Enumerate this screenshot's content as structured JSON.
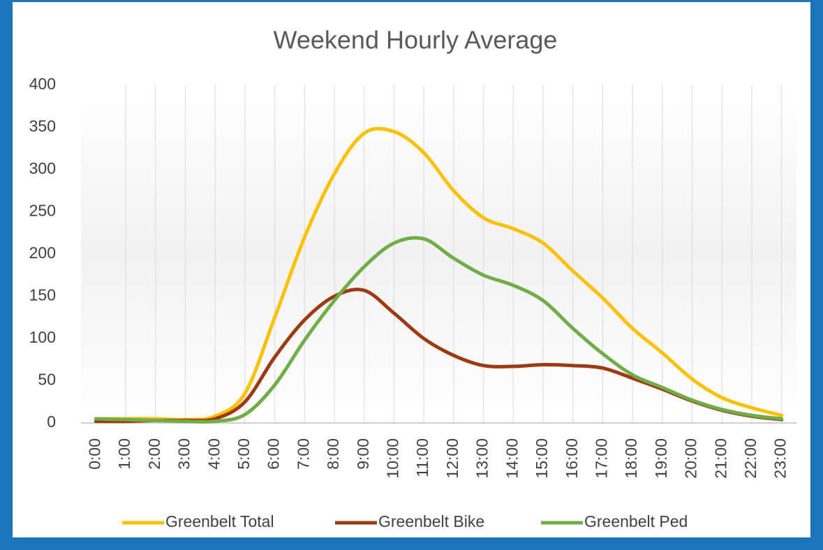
{
  "chart_data": {
    "type": "line",
    "title": "Weekend Hourly Average",
    "categories": [
      "0:00",
      "1:00",
      "2:00",
      "3:00",
      "4:00",
      "5:00",
      "6:00",
      "7:00",
      "8:00",
      "9:00",
      "10:00",
      "11:00",
      "12:00",
      "13:00",
      "14:00",
      "15:00",
      "16:00",
      "17:00",
      "18:00",
      "19:00",
      "20:00",
      "21:00",
      "22:00",
      "23:00"
    ],
    "series": [
      {
        "name": "Greenbelt Total",
        "color": "#ffc000",
        "values": [
          5,
          5,
          5,
          4,
          8,
          35,
          125,
          220,
          295,
          343,
          345,
          320,
          275,
          243,
          230,
          213,
          180,
          148,
          112,
          83,
          52,
          30,
          18,
          9
        ]
      },
      {
        "name": "Greenbelt Bike",
        "color": "#9e3a13",
        "values": [
          2,
          2,
          3,
          3,
          5,
          25,
          78,
          122,
          150,
          157,
          130,
          100,
          80,
          68,
          67,
          69,
          68,
          65,
          53,
          40,
          26,
          15,
          8,
          4
        ]
      },
      {
        "name": "Greenbelt Ped",
        "color": "#70ad47",
        "values": [
          5,
          4,
          3,
          2,
          2,
          10,
          45,
          98,
          145,
          185,
          213,
          218,
          195,
          175,
          163,
          145,
          112,
          82,
          57,
          42,
          27,
          16,
          9,
          5
        ]
      }
    ],
    "ylim": [
      0,
      400
    ],
    "yticks": [
      0,
      50,
      100,
      150,
      200,
      250,
      300,
      350,
      400
    ],
    "xgrid": true,
    "smooth": true,
    "legend": "bottom"
  }
}
